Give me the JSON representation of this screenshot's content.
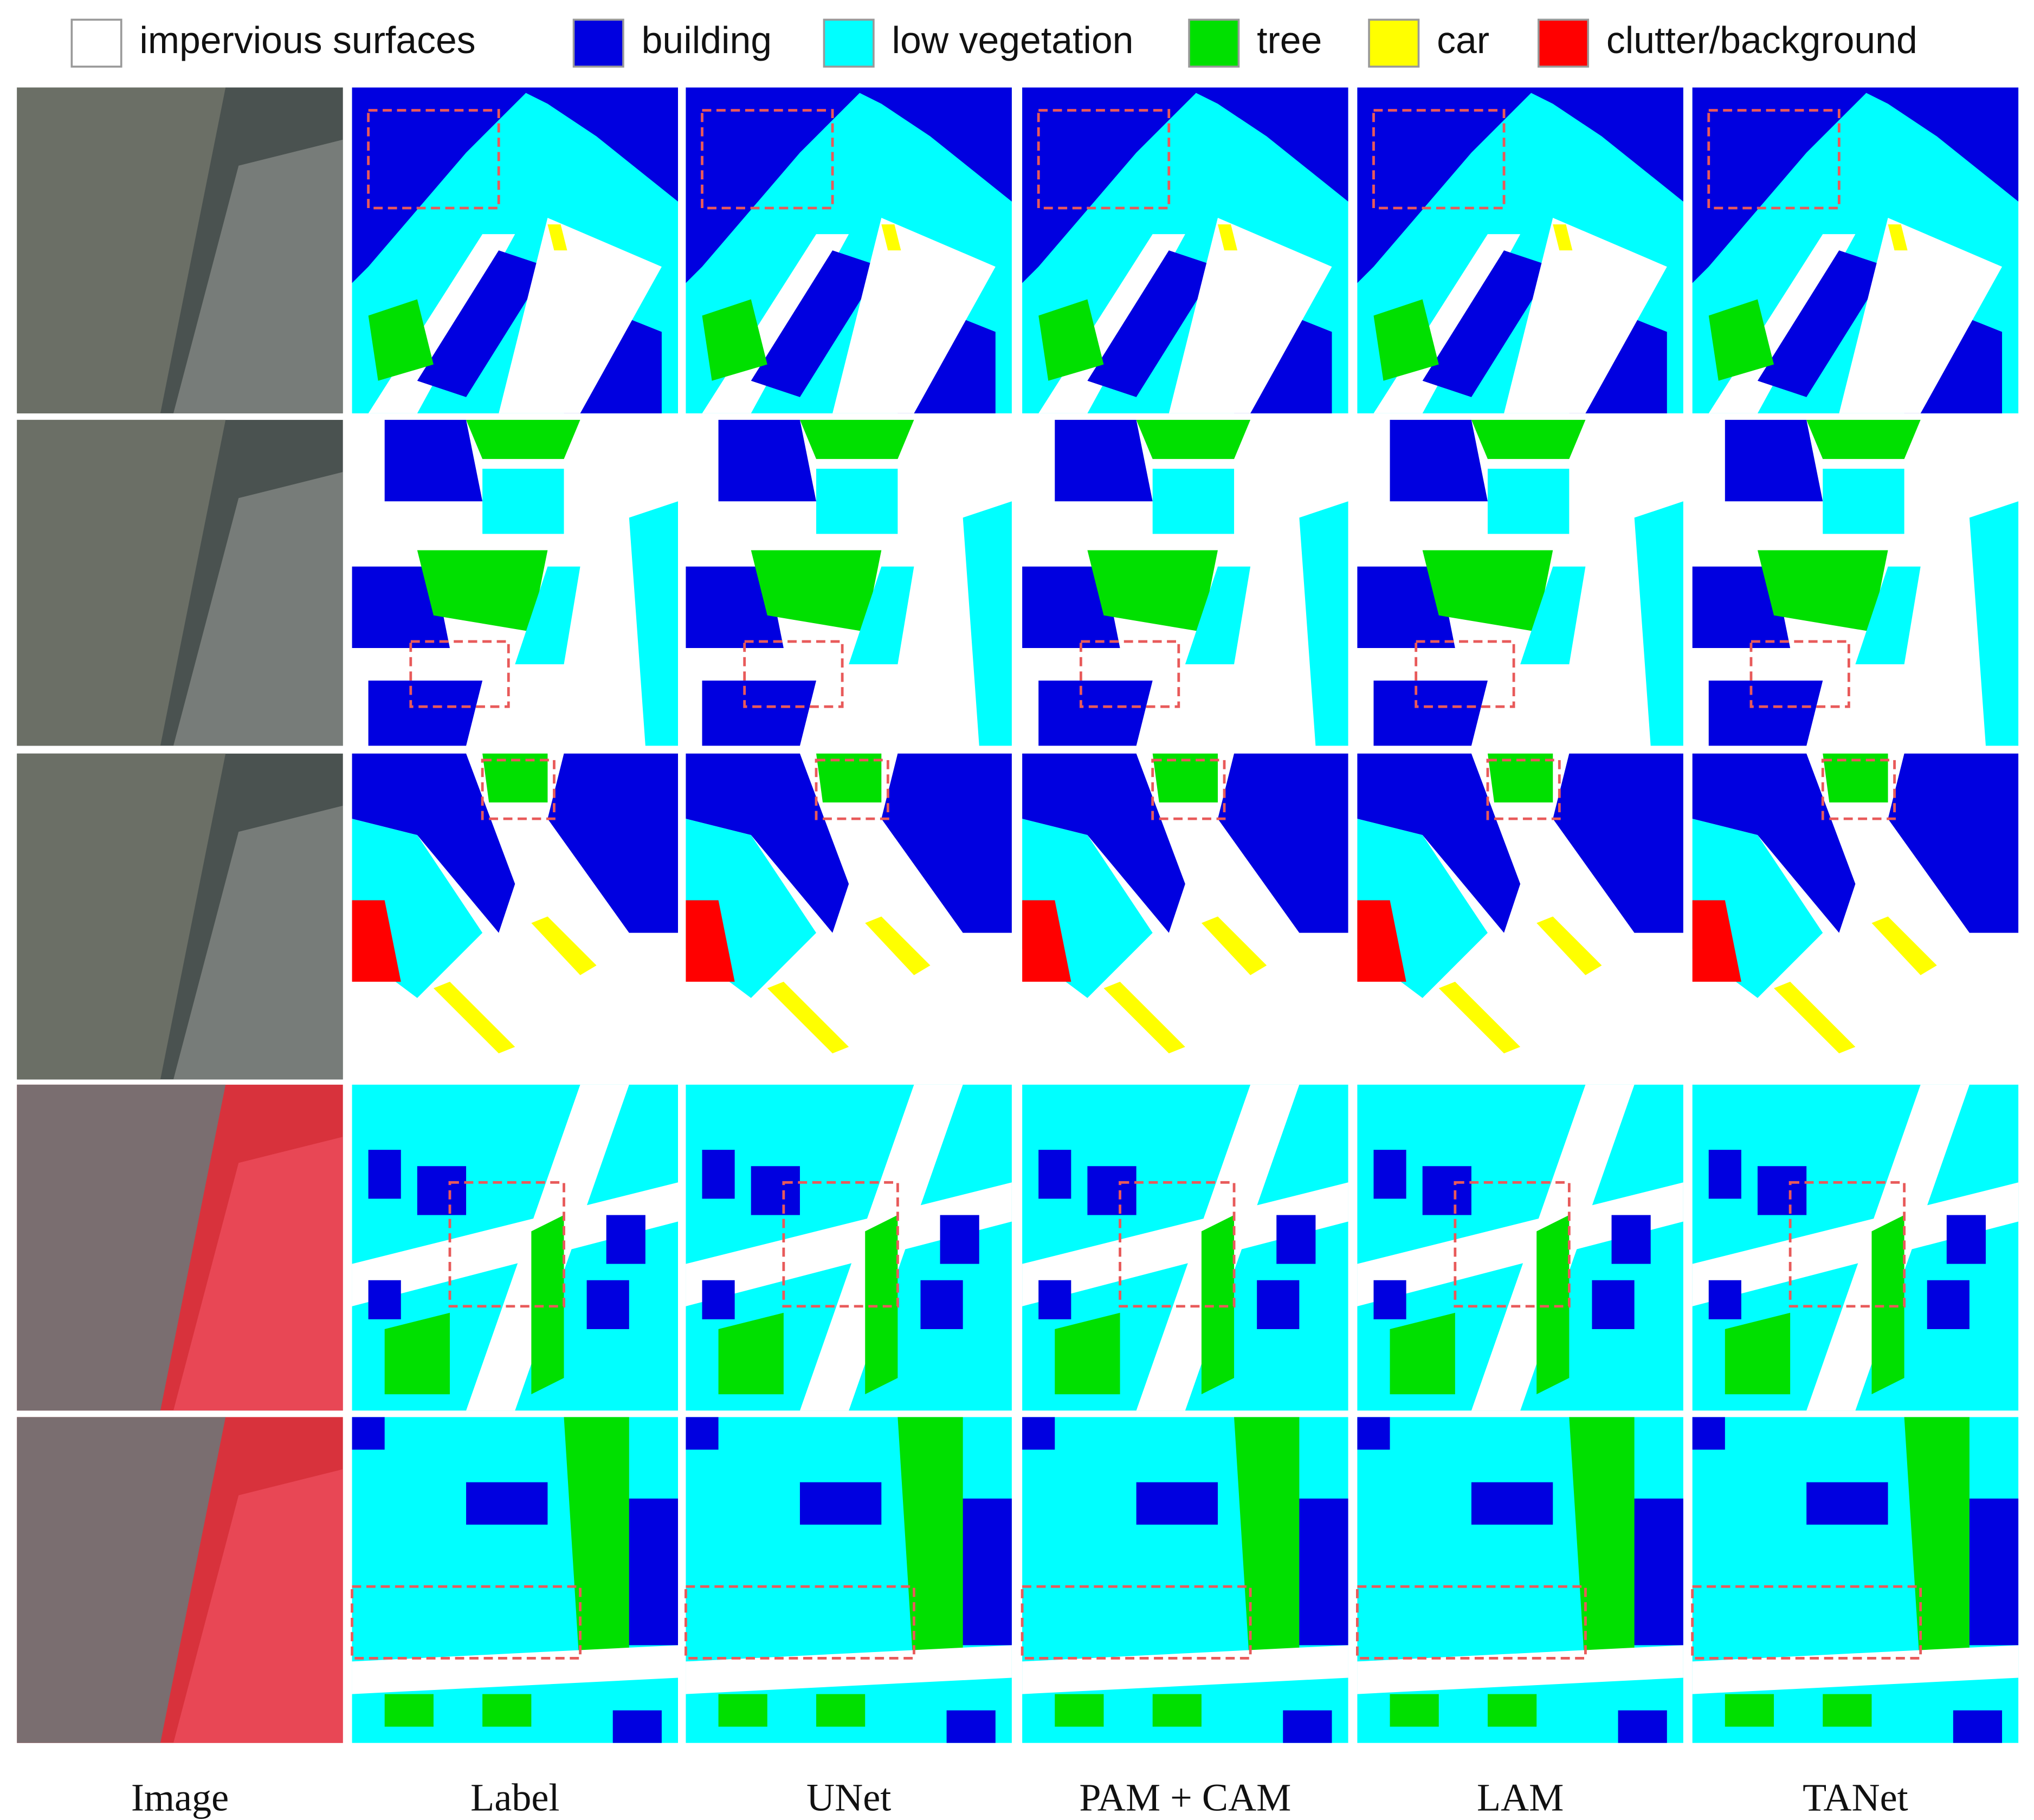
{
  "legend": [
    {
      "label": "impervious surfaces",
      "color": "#ffffff"
    },
    {
      "label": "building",
      "color": "#0000e0"
    },
    {
      "label": "low vegetation",
      "color": "#00ffff"
    },
    {
      "label": "tree",
      "color": "#00e000"
    },
    {
      "label": "car",
      "color": "#ffff00"
    },
    {
      "label": "clutter/background",
      "color": "#ff0000"
    }
  ],
  "columns": [
    "Image",
    "Label",
    "UNet",
    "PAM + CAM",
    "LAM",
    "TANet"
  ]
}
